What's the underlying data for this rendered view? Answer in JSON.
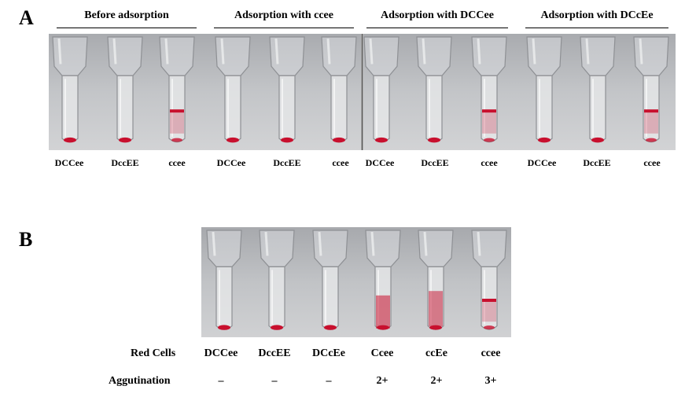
{
  "panelA": {
    "letter": "A",
    "groups": [
      {
        "title": "Before adsorption",
        "tubes": [
          "DCCee",
          "DccEE",
          "ccee"
        ]
      },
      {
        "title": "Adsorption with ccee",
        "tubes": [
          "DCCee",
          "DccEE",
          "ccee"
        ]
      },
      {
        "title": "Adsorption with DCCee",
        "tubes": [
          "DCCee",
          "DccEE",
          "ccee"
        ]
      },
      {
        "title": "Adsorption with DCcEe",
        "tubes": [
          "DCCee",
          "DccEE",
          "ccee"
        ]
      }
    ],
    "tube_states": [
      "pellet",
      "pellet",
      "band",
      "pellet",
      "pellet",
      "pellet",
      "pellet",
      "pellet",
      "band",
      "pellet",
      "pellet",
      "band"
    ]
  },
  "panelB": {
    "letter": "B",
    "row1_header": "Red Cells",
    "row2_header": "Aggutination",
    "cells": [
      {
        "name": "DCCee",
        "agglutination": "–",
        "state": "pellet"
      },
      {
        "name": "DccEE",
        "agglutination": "–",
        "state": "pellet"
      },
      {
        "name": "DCcEe",
        "agglutination": "–",
        "state": "pellet"
      },
      {
        "name": "Ccee",
        "agglutination": "2+",
        "state": "spread"
      },
      {
        "name": "ccEe",
        "agglutination": "2+",
        "state": "spread2"
      },
      {
        "name": "ccee",
        "agglutination": "3+",
        "state": "band"
      }
    ]
  },
  "colors": {
    "blood": "#c8102e",
    "photo_bg": "#b7b9bd"
  }
}
